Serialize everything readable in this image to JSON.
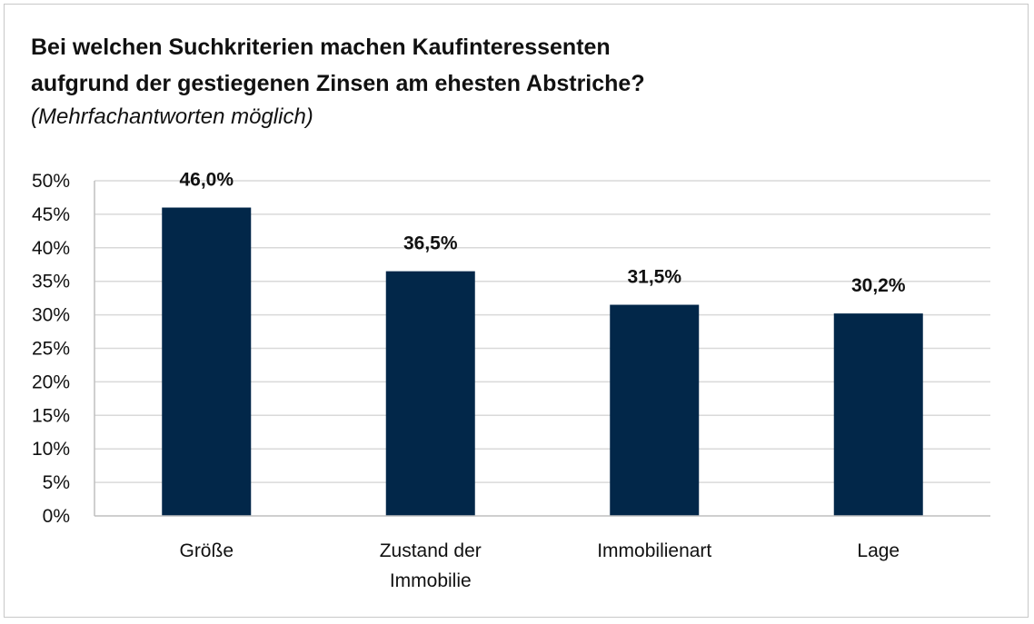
{
  "chart_data": {
    "type": "bar",
    "title_line1": "Bei welchen Suchkriterien machen Kaufinteressenten",
    "title_line2": "aufgrund der gestiegenen Zinsen am ehesten Abstriche?",
    "subtitle": "(Mehrfachantworten möglich)",
    "categories": [
      [
        "Größe"
      ],
      [
        "Zustand der",
        "Immobilie"
      ],
      [
        "Immobilienart"
      ],
      [
        "Lage"
      ]
    ],
    "values": [
      46.0,
      36.5,
      31.5,
      30.2
    ],
    "data_labels": [
      "46,0%",
      "36,5%",
      "31,5%",
      "30,2%"
    ],
    "y_ticks": [
      0,
      5,
      10,
      15,
      20,
      25,
      30,
      35,
      40,
      45,
      50
    ],
    "y_tick_labels": [
      "0%",
      "5%",
      "10%",
      "15%",
      "20%",
      "25%",
      "30%",
      "35%",
      "40%",
      "45%",
      "50%"
    ],
    "ylim": [
      0,
      50
    ],
    "grid": true,
    "bar_color": "#022749",
    "grid_color": "#d9d9d9"
  }
}
